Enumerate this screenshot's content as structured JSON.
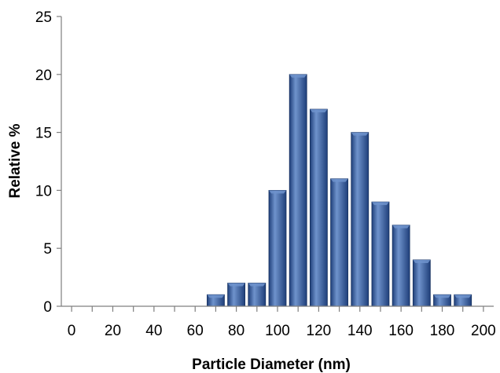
{
  "chart_data": {
    "type": "bar",
    "title": "",
    "xlabel": "Particle Diameter (nm)",
    "ylabel": "Relative %",
    "x_tick_labels": [
      "0",
      "20",
      "40",
      "60",
      "80",
      "100",
      "120",
      "140",
      "160",
      "180",
      "200"
    ],
    "x_range": [
      -5,
      205
    ],
    "ylim": [
      0,
      25
    ],
    "y_ticks": [
      0,
      5,
      10,
      15,
      20,
      25
    ],
    "grid": false,
    "legend": "none",
    "bin_width": 10,
    "bars": [
      {
        "x": 70,
        "value": 1
      },
      {
        "x": 80,
        "value": 2
      },
      {
        "x": 90,
        "value": 2
      },
      {
        "x": 100,
        "value": 10
      },
      {
        "x": 110,
        "value": 20
      },
      {
        "x": 120,
        "value": 17
      },
      {
        "x": 130,
        "value": 11
      },
      {
        "x": 140,
        "value": 15
      },
      {
        "x": 150,
        "value": 9
      },
      {
        "x": 160,
        "value": 7
      },
      {
        "x": 170,
        "value": 4
      },
      {
        "x": 180,
        "value": 1
      },
      {
        "x": 190,
        "value": 1
      }
    ],
    "bar_color": "#1f3f7a",
    "bar_highlight": "#6f93cc"
  }
}
